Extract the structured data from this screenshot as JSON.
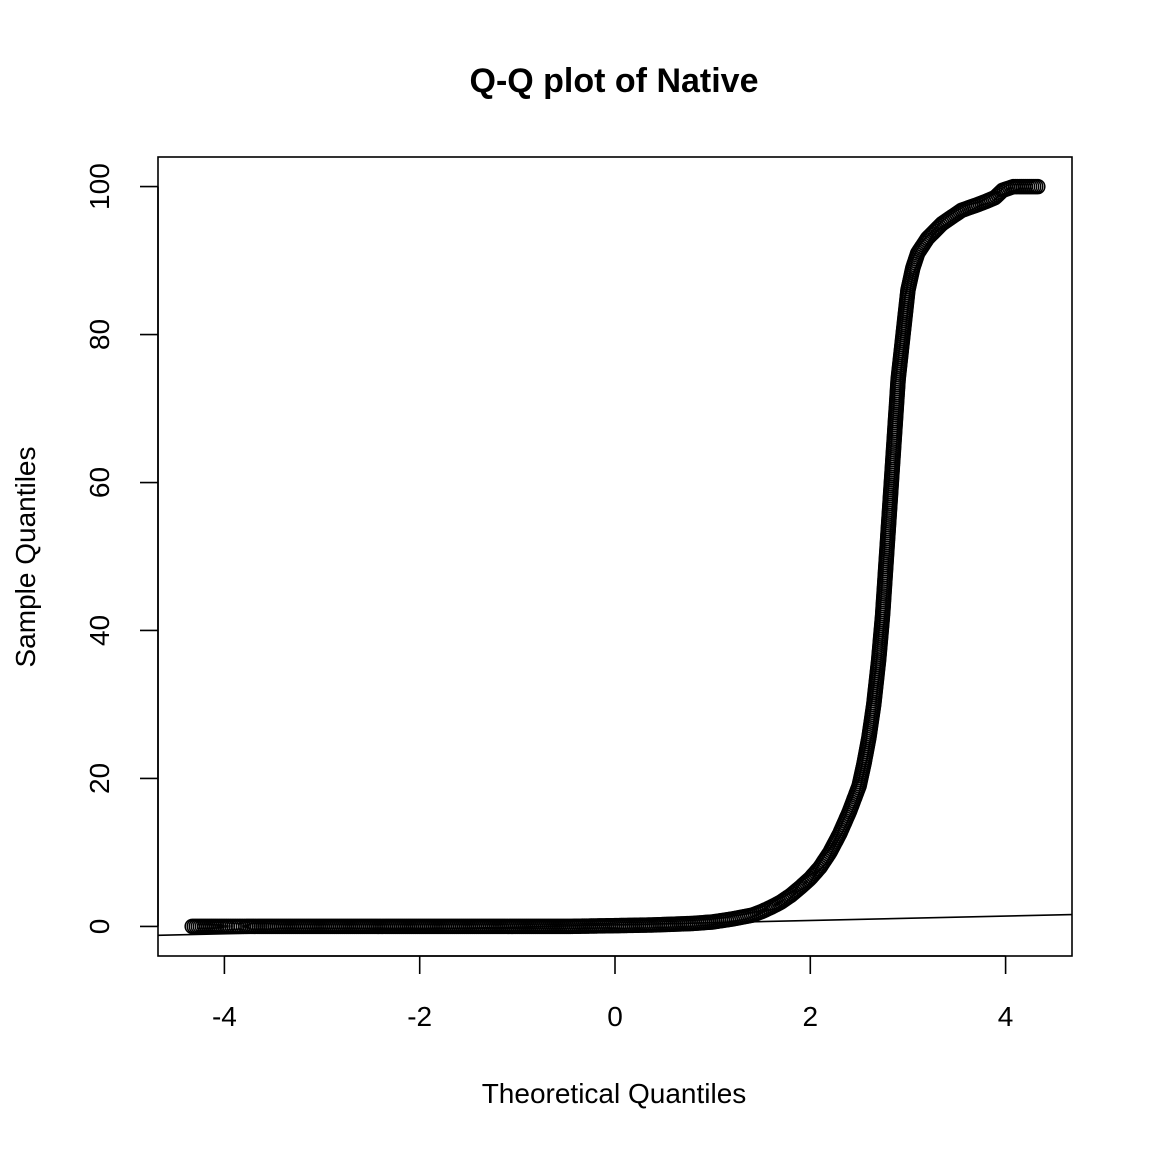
{
  "chart_data": {
    "type": "scatter",
    "title": "Q-Q plot of Native",
    "xlabel": "Theoretical Quantiles",
    "ylabel": "Sample Quantiles",
    "xlim": [
      -4.68,
      4.68
    ],
    "ylim": [
      -4,
      104
    ],
    "x_ticks": [
      -4,
      -2,
      0,
      2,
      4
    ],
    "x_tick_labels": [
      "-4",
      "-2",
      "0",
      "2",
      "4"
    ],
    "y_ticks": [
      0,
      20,
      40,
      60,
      80,
      100
    ],
    "y_tick_labels": [
      "0",
      "20",
      "40",
      "60",
      "80",
      "100"
    ],
    "grid": false,
    "marker": "open-circle",
    "point_color": "#000000",
    "reference_line": {
      "x": [
        -4.68,
        4.68
      ],
      "y": [
        -1.2,
        1.6
      ]
    },
    "points": [
      [
        -4.33,
        0
      ],
      [
        -4.08,
        0
      ],
      [
        -3.97,
        0
      ],
      [
        -3.9,
        0
      ],
      [
        -3.83,
        0
      ],
      [
        -3.78,
        0
      ],
      [
        -3.74,
        0
      ],
      [
        -3.5,
        0
      ],
      [
        -3.0,
        0
      ],
      [
        -2.5,
        0
      ],
      [
        -2.0,
        0
      ],
      [
        -1.5,
        0
      ],
      [
        -1.0,
        0
      ],
      [
        -0.5,
        0
      ],
      [
        0.0,
        0.1
      ],
      [
        0.4,
        0.2
      ],
      [
        0.8,
        0.4
      ],
      [
        1.0,
        0.6
      ],
      [
        1.2,
        1.0
      ],
      [
        1.4,
        1.5
      ],
      [
        1.5,
        2.0
      ],
      [
        1.6,
        2.6
      ],
      [
        1.7,
        3.3
      ],
      [
        1.8,
        4.2
      ],
      [
        1.9,
        5.3
      ],
      [
        2.0,
        6.5
      ],
      [
        2.1,
        8.0
      ],
      [
        2.2,
        10.0
      ],
      [
        2.3,
        12.5
      ],
      [
        2.4,
        15.5
      ],
      [
        2.5,
        19.0
      ],
      [
        2.55,
        22.0
      ],
      [
        2.6,
        25.5
      ],
      [
        2.65,
        30.0
      ],
      [
        2.7,
        36.0
      ],
      [
        2.74,
        42.0
      ],
      [
        2.78,
        50.0
      ],
      [
        2.82,
        58.0
      ],
      [
        2.86,
        66.0
      ],
      [
        2.9,
        74.0
      ],
      [
        2.95,
        80.0
      ],
      [
        3.0,
        86.0
      ],
      [
        3.05,
        89.0
      ],
      [
        3.1,
        91.0
      ],
      [
        3.2,
        93.0
      ],
      [
        3.35,
        95.0
      ],
      [
        3.55,
        96.8
      ],
      [
        3.7,
        97.5
      ],
      [
        3.8,
        98.0
      ],
      [
        3.89,
        98.5
      ],
      [
        3.97,
        99.5
      ],
      [
        4.08,
        100.0
      ],
      [
        4.33,
        100.0
      ]
    ]
  }
}
